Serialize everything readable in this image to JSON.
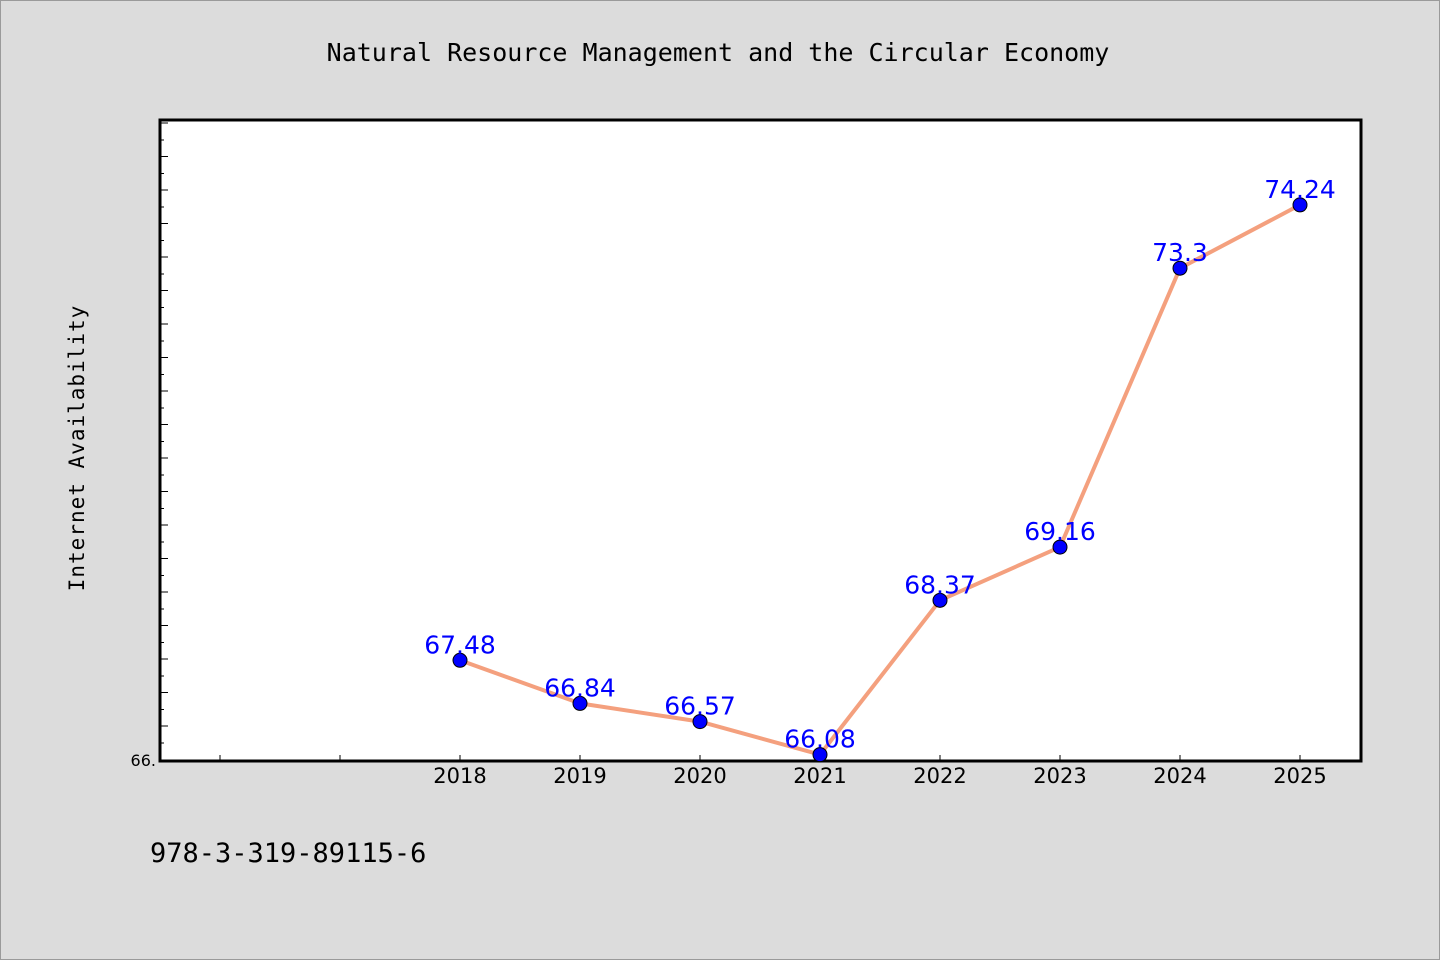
{
  "chart_data": {
    "type": "line",
    "title": "Natural Resource Management and the Circular Economy",
    "xlabel": "",
    "ylabel": "Internet Availability",
    "categories": [
      "2018",
      "2019",
      "2020",
      "2021",
      "2022",
      "2023",
      "2024",
      "2025"
    ],
    "series": [
      {
        "values": [
          67.48,
          66.84,
          66.57,
          66.08,
          68.37,
          69.16,
          73.3,
          74.24
        ]
      }
    ],
    "data_labels": [
      "67.48",
      "66.84",
      "66.57",
      "66.08",
      "68.37",
      "69.16",
      "73.3",
      "74.24"
    ],
    "y_tick_labels": [
      "66."
    ],
    "ylim": [
      66.0,
      75.5
    ],
    "grid": false,
    "line_color": "#f4a07e",
    "marker_color": "#0000ff",
    "label_color": "#0000ff"
  },
  "footer": {
    "isbn": "978-3-319-89115-6"
  }
}
